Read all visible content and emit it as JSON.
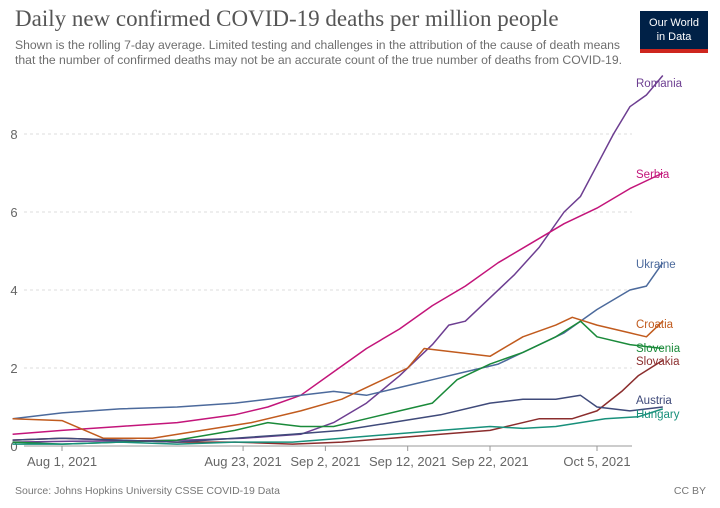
{
  "header": {
    "title": "Daily new confirmed COVID-19 deaths per million people",
    "subtitle_line1": "Shown is the rolling 7-day average. Limited testing and challenges in the attribution of the cause of death means",
    "subtitle_line2": "that the number of confirmed deaths may not be an accurate count of the true number of deaths from COVID-19."
  },
  "logo": {
    "line1": "Our World",
    "line2": "in Data",
    "bg_color": "#002147",
    "accent_color": "#ce261e"
  },
  "footer": {
    "source": "Source: Johns Hopkins University CSSE COVID-19 Data",
    "license": "CC BY"
  },
  "chart_data": {
    "type": "line",
    "title": "Daily new confirmed COVID-19 deaths per million people",
    "xlabel": "",
    "ylabel": "",
    "x_range": [
      "2021-07-26",
      "2021-10-11"
    ],
    "ylim": [
      0,
      9.5
    ],
    "y_ticks": [
      0,
      2,
      4,
      6,
      8
    ],
    "x_ticks": [
      {
        "date": "2021-08-01",
        "label": "Aug 1, 2021"
      },
      {
        "date": "2021-08-23",
        "label": "Aug 23, 2021"
      },
      {
        "date": "2021-09-02",
        "label": "Sep 2, 2021"
      },
      {
        "date": "2021-09-12",
        "label": "Sep 12, 2021"
      },
      {
        "date": "2021-09-22",
        "label": "Sep 22, 2021"
      },
      {
        "date": "2021-10-05",
        "label": "Oct 5, 2021"
      }
    ],
    "grid": "horizontal dashed",
    "legend": "labels at line ends (right)",
    "series": [
      {
        "name": "Romania",
        "color": "#6d3e91",
        "points": [
          [
            "2021-07-26",
            0.1
          ],
          [
            "2021-08-02",
            0.12
          ],
          [
            "2021-08-09",
            0.13
          ],
          [
            "2021-08-16",
            0.15
          ],
          [
            "2021-08-23",
            0.2
          ],
          [
            "2021-08-30",
            0.3
          ],
          [
            "2021-09-03",
            0.6
          ],
          [
            "2021-09-07",
            1.1
          ],
          [
            "2021-09-11",
            1.8
          ],
          [
            "2021-09-15",
            2.6
          ],
          [
            "2021-09-17",
            3.1
          ],
          [
            "2021-09-19",
            3.2
          ],
          [
            "2021-09-22",
            3.8
          ],
          [
            "2021-09-25",
            4.4
          ],
          [
            "2021-09-28",
            5.1
          ],
          [
            "2021-10-01",
            6.0
          ],
          [
            "2021-10-03",
            6.4
          ],
          [
            "2021-10-05",
            7.2
          ],
          [
            "2021-10-07",
            8.0
          ],
          [
            "2021-10-09",
            8.7
          ],
          [
            "2021-10-11",
            9.0
          ],
          [
            "2021-10-13",
            9.5
          ]
        ]
      },
      {
        "name": "Serbia",
        "color": "#c3157a",
        "points": [
          [
            "2021-07-26",
            0.3
          ],
          [
            "2021-08-01",
            0.4
          ],
          [
            "2021-08-08",
            0.5
          ],
          [
            "2021-08-15",
            0.6
          ],
          [
            "2021-08-22",
            0.8
          ],
          [
            "2021-08-26",
            1.0
          ],
          [
            "2021-08-30",
            1.3
          ],
          [
            "2021-09-03",
            1.9
          ],
          [
            "2021-09-07",
            2.5
          ],
          [
            "2021-09-11",
            3.0
          ],
          [
            "2021-09-15",
            3.6
          ],
          [
            "2021-09-19",
            4.1
          ],
          [
            "2021-09-23",
            4.7
          ],
          [
            "2021-09-27",
            5.2
          ],
          [
            "2021-10-01",
            5.7
          ],
          [
            "2021-10-05",
            6.1
          ],
          [
            "2021-10-09",
            6.6
          ],
          [
            "2021-10-13",
            7.0
          ]
        ]
      },
      {
        "name": "Ukraine",
        "color": "#4c6a9c",
        "points": [
          [
            "2021-07-26",
            0.7
          ],
          [
            "2021-08-01",
            0.85
          ],
          [
            "2021-08-08",
            0.95
          ],
          [
            "2021-08-15",
            1.0
          ],
          [
            "2021-08-22",
            1.1
          ],
          [
            "2021-08-26",
            1.2
          ],
          [
            "2021-08-30",
            1.3
          ],
          [
            "2021-09-03",
            1.4
          ],
          [
            "2021-09-07",
            1.3
          ],
          [
            "2021-09-11",
            1.5
          ],
          [
            "2021-09-15",
            1.7
          ],
          [
            "2021-09-19",
            1.9
          ],
          [
            "2021-09-23",
            2.1
          ],
          [
            "2021-09-27",
            2.5
          ],
          [
            "2021-10-01",
            2.9
          ],
          [
            "2021-10-05",
            3.5
          ],
          [
            "2021-10-09",
            4.0
          ],
          [
            "2021-10-11",
            4.1
          ],
          [
            "2021-10-13",
            4.7
          ]
        ]
      },
      {
        "name": "Croatia",
        "color": "#c15b1e",
        "points": [
          [
            "2021-07-26",
            0.7
          ],
          [
            "2021-08-01",
            0.65
          ],
          [
            "2021-08-06",
            0.2
          ],
          [
            "2021-08-12",
            0.2
          ],
          [
            "2021-08-18",
            0.4
          ],
          [
            "2021-08-24",
            0.6
          ],
          [
            "2021-08-30",
            0.9
          ],
          [
            "2021-09-04",
            1.2
          ],
          [
            "2021-09-08",
            1.6
          ],
          [
            "2021-09-12",
            2.0
          ],
          [
            "2021-09-14",
            2.5
          ],
          [
            "2021-09-18",
            2.4
          ],
          [
            "2021-09-22",
            2.3
          ],
          [
            "2021-09-26",
            2.8
          ],
          [
            "2021-09-30",
            3.1
          ],
          [
            "2021-10-02",
            3.3
          ],
          [
            "2021-10-05",
            3.1
          ],
          [
            "2021-10-09",
            2.9
          ],
          [
            "2021-10-11",
            2.8
          ],
          [
            "2021-10-13",
            3.2
          ]
        ]
      },
      {
        "name": "Slovenia",
        "color": "#1a8a3a",
        "points": [
          [
            "2021-07-26",
            0.1
          ],
          [
            "2021-08-01",
            0.05
          ],
          [
            "2021-08-08",
            0.1
          ],
          [
            "2021-08-15",
            0.15
          ],
          [
            "2021-08-22",
            0.4
          ],
          [
            "2021-08-26",
            0.6
          ],
          [
            "2021-08-30",
            0.5
          ],
          [
            "2021-09-03",
            0.5
          ],
          [
            "2021-09-07",
            0.7
          ],
          [
            "2021-09-11",
            0.9
          ],
          [
            "2021-09-15",
            1.1
          ],
          [
            "2021-09-18",
            1.7
          ],
          [
            "2021-09-22",
            2.1
          ],
          [
            "2021-09-26",
            2.4
          ],
          [
            "2021-09-30",
            2.8
          ],
          [
            "2021-10-03",
            3.2
          ],
          [
            "2021-10-05",
            2.8
          ],
          [
            "2021-10-09",
            2.6
          ],
          [
            "2021-10-13",
            2.5
          ]
        ]
      },
      {
        "name": "Slovakia",
        "color": "#8b2d2d",
        "points": [
          [
            "2021-07-26",
            0.15
          ],
          [
            "2021-08-01",
            0.2
          ],
          [
            "2021-08-08",
            0.15
          ],
          [
            "2021-08-15",
            0.1
          ],
          [
            "2021-08-22",
            0.1
          ],
          [
            "2021-08-29",
            0.05
          ],
          [
            "2021-09-04",
            0.1
          ],
          [
            "2021-09-10",
            0.2
          ],
          [
            "2021-09-16",
            0.3
          ],
          [
            "2021-09-22",
            0.4
          ],
          [
            "2021-09-28",
            0.7
          ],
          [
            "2021-10-02",
            0.7
          ],
          [
            "2021-10-05",
            0.9
          ],
          [
            "2021-10-08",
            1.4
          ],
          [
            "2021-10-10",
            1.8
          ],
          [
            "2021-10-13",
            2.2
          ]
        ]
      },
      {
        "name": "Austria",
        "color": "#3f4a7a",
        "points": [
          [
            "2021-07-26",
            0.15
          ],
          [
            "2021-08-01",
            0.2
          ],
          [
            "2021-08-08",
            0.15
          ],
          [
            "2021-08-15",
            0.1
          ],
          [
            "2021-08-22",
            0.2
          ],
          [
            "2021-08-29",
            0.3
          ],
          [
            "2021-09-04",
            0.4
          ],
          [
            "2021-09-10",
            0.6
          ],
          [
            "2021-09-16",
            0.8
          ],
          [
            "2021-09-22",
            1.1
          ],
          [
            "2021-09-26",
            1.2
          ],
          [
            "2021-09-30",
            1.2
          ],
          [
            "2021-10-03",
            1.3
          ],
          [
            "2021-10-05",
            1.0
          ],
          [
            "2021-10-09",
            0.9
          ],
          [
            "2021-10-13",
            1.0
          ]
        ]
      },
      {
        "name": "Hungary",
        "color": "#18907b",
        "points": [
          [
            "2021-07-26",
            0.05
          ],
          [
            "2021-08-01",
            0.05
          ],
          [
            "2021-08-08",
            0.1
          ],
          [
            "2021-08-15",
            0.05
          ],
          [
            "2021-08-22",
            0.1
          ],
          [
            "2021-08-29",
            0.1
          ],
          [
            "2021-09-04",
            0.2
          ],
          [
            "2021-09-10",
            0.3
          ],
          [
            "2021-09-16",
            0.4
          ],
          [
            "2021-09-22",
            0.5
          ],
          [
            "2021-09-26",
            0.45
          ],
          [
            "2021-09-30",
            0.5
          ],
          [
            "2021-10-03",
            0.6
          ],
          [
            "2021-10-06",
            0.7
          ],
          [
            "2021-10-10",
            0.75
          ],
          [
            "2021-10-13",
            0.95
          ]
        ]
      }
    ]
  }
}
